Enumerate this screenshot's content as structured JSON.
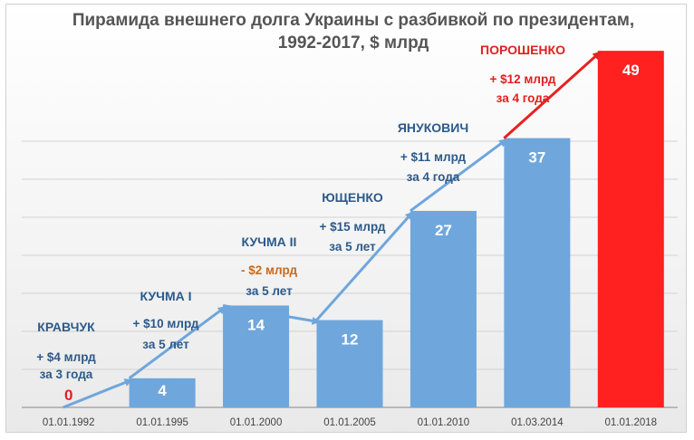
{
  "chart_data": {
    "type": "bar",
    "title": "Пирамида внешнего долга Украины с разбивкой по президентам, 1992-2017, $ млрд",
    "title_lines": [
      "Пирамида внешнего долга Украины с разбивкой по президентам,",
      "1992-2017, $ млрд"
    ],
    "categories": [
      "01.01.1992",
      "01.01.1995",
      "01.01.2000",
      "01.01.2005",
      "01.01.2010",
      "01.03.2014",
      "01.01.2018"
    ],
    "values": [
      0,
      4,
      14,
      12,
      27,
      37,
      49
    ],
    "ylim": [
      0,
      52
    ],
    "grid": true,
    "legend": "none",
    "colors": {
      "bar": "#6fa6dc",
      "highlight_bar": "#ff2020",
      "zero_label": "#e02020",
      "arrow": "#6fa6dc",
      "highlight_arrow": "#e82020",
      "president": "#2c5a8a",
      "president_highlight": "#e02020",
      "delta": "#2c5a8a",
      "delta_negative": "#c96a1c",
      "delta_highlight": "#e02020"
    },
    "annotations": [
      {
        "president": "КРАВЧУК",
        "delta": "+ $4 млрд",
        "period": "за 3 года"
      },
      {
        "president": "КУЧМА I",
        "delta": "+ $10 млрд",
        "period": "за 5 лет"
      },
      {
        "president": "КУЧМА II",
        "delta": "- $2 млрд",
        "period": "за 5 лет"
      },
      {
        "president": "ЮЩЕНКО",
        "delta": "+ $15 млрд",
        "period": "за 5 лет"
      },
      {
        "president": "ЯНУКОВИЧ",
        "delta": "+ $11 млрд",
        "period": "за 4 года"
      },
      {
        "president": "ПОРОШЕНКО",
        "delta": "+ $12 млрд",
        "period": "за 4 года"
      }
    ]
  }
}
